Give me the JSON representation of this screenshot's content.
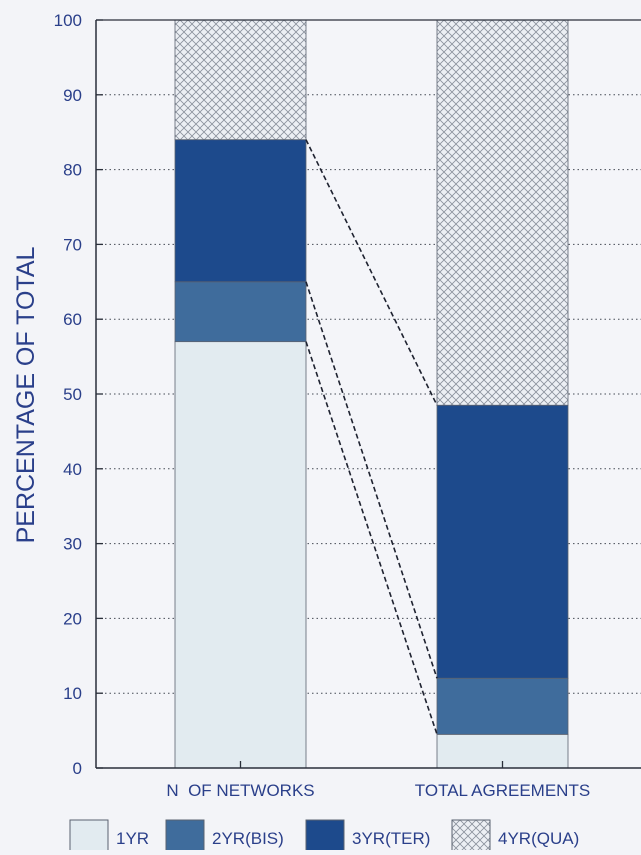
{
  "chart_data": {
    "type": "bar",
    "stacked": true,
    "ylabel": "PERCENTAGE OF TOTAL",
    "xlabel": "",
    "ylim": [
      0,
      100
    ],
    "yticks": [
      0,
      10,
      20,
      30,
      40,
      50,
      60,
      70,
      80,
      90,
      100
    ],
    "grid": true,
    "legend_position": "bottom",
    "categories": [
      "N  OF NETWORKS",
      "TOTAL AGREEMENTS"
    ],
    "series": [
      {
        "name": "1YR",
        "values": [
          57,
          4.5
        ],
        "color": "#e2ebf0",
        "pattern": "solid"
      },
      {
        "name": "2YR(BIS)",
        "values": [
          8,
          7.5
        ],
        "color": "#3f6c9c",
        "pattern": "solid"
      },
      {
        "name": "3YR(TER)",
        "values": [
          19,
          36.5
        ],
        "color": "#1d4a8c",
        "pattern": "solid"
      },
      {
        "name": "4YR(QUA)",
        "values": [
          16,
          51.5
        ],
        "color": "#e8ecf1",
        "pattern": "crosshatch"
      }
    ],
    "connectors": true
  }
}
